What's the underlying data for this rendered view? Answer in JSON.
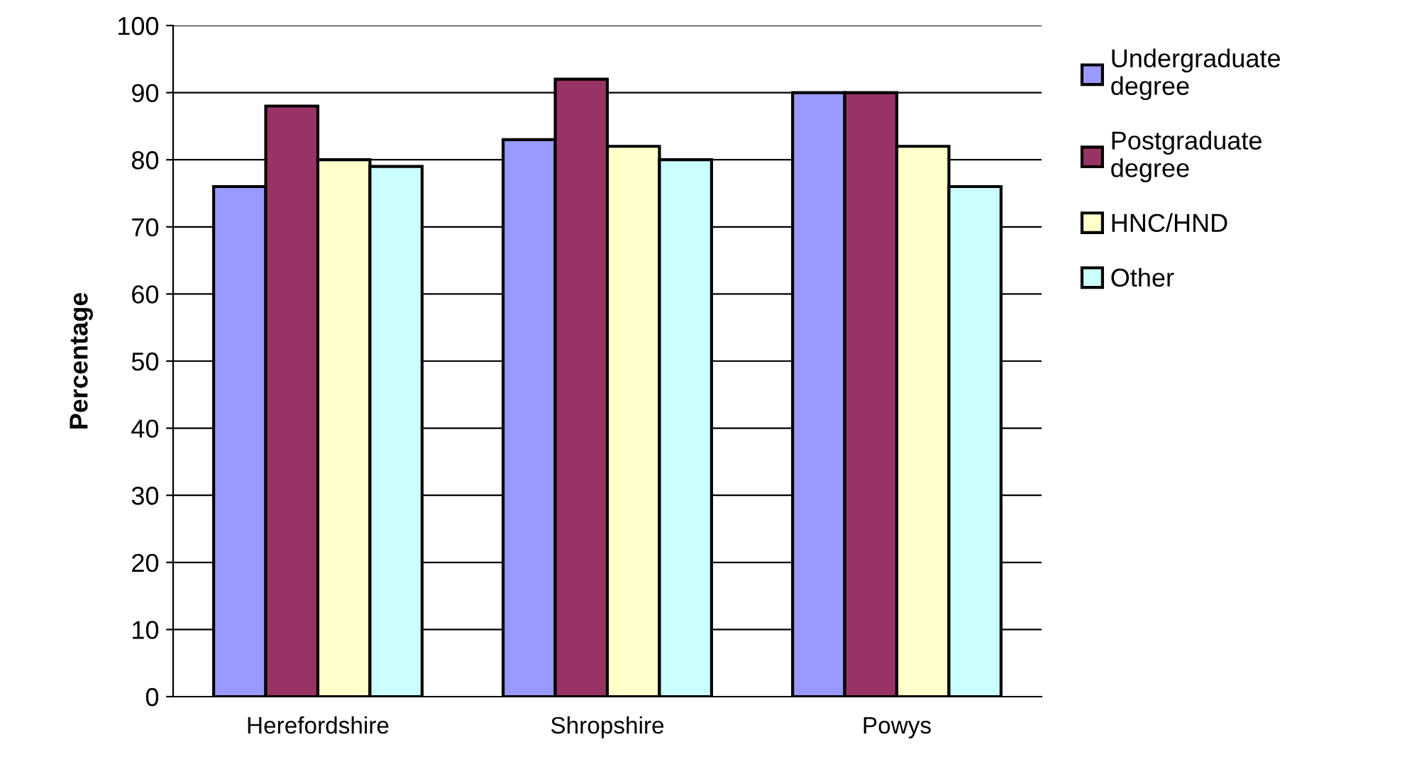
{
  "chart_data": {
    "type": "bar",
    "ylabel": "Percentage",
    "categories": [
      "Herefordshire",
      "Shropshire",
      "Powys"
    ],
    "series": [
      {
        "name": "Undergraduate\ndegree",
        "color": "#9999ff",
        "values": [
          76,
          83,
          90
        ]
      },
      {
        "name": "Postgraduate\ndegree",
        "color": "#993366",
        "values": [
          88,
          92,
          90
        ]
      },
      {
        "name": "HNC/HND",
        "color": "#ffffcc",
        "values": [
          80,
          82,
          82
        ]
      },
      {
        "name": "Other",
        "color": "#ccffff",
        "values": [
          79,
          80,
          76
        ]
      }
    ],
    "ylim": [
      0,
      100
    ],
    "yticks": [
      0,
      10,
      20,
      30,
      40,
      50,
      60,
      70,
      80,
      90,
      100
    ],
    "grid": "y",
    "legend": "right"
  }
}
